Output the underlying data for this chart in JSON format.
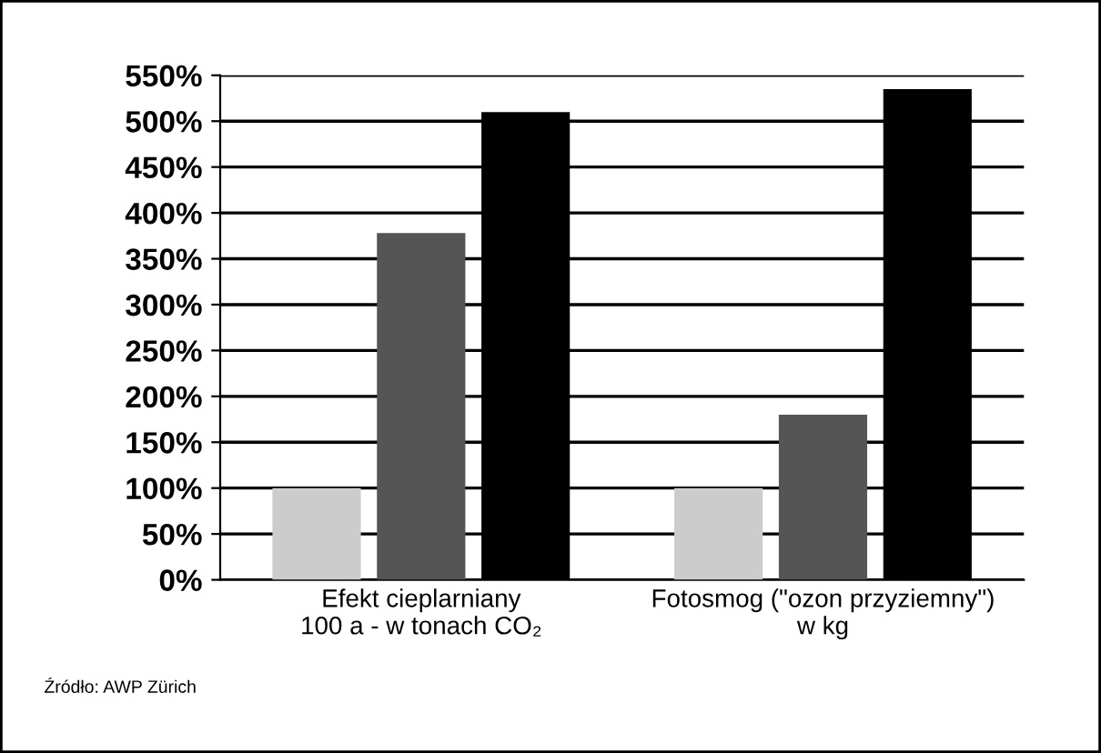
{
  "chart_data": {
    "type": "bar",
    "categories": [
      "Efekt cieplarniany\n100 a - w tonach CO₂",
      "Fotosmog (\"ozon przyziemny\")\nw kg"
    ],
    "series": [
      {
        "color": "#cccccc",
        "values": [
          100,
          100
        ]
      },
      {
        "color": "#555555",
        "values": [
          378,
          180
        ]
      },
      {
        "color": "#000000",
        "values": [
          510,
          535
        ]
      }
    ],
    "ylim": [
      0,
      550
    ],
    "yticks": [
      {
        "value": 0,
        "label": "0%"
      },
      {
        "value": 50,
        "label": "50%"
      },
      {
        "value": 100,
        "label": "100%"
      },
      {
        "value": 150,
        "label": "150%"
      },
      {
        "value": 200,
        "label": "200%"
      },
      {
        "value": 250,
        "label": "250%"
      },
      {
        "value": 300,
        "label": "300%"
      },
      {
        "value": 350,
        "label": "350%"
      },
      {
        "value": 400,
        "label": "400%"
      },
      {
        "value": 450,
        "label": "450%"
      },
      {
        "value": 500,
        "label": "500%"
      },
      {
        "value": 550,
        "label": "550%"
      }
    ],
    "grid": "y",
    "legend": false,
    "annotations": [
      "Źródło: AWP Zürich"
    ]
  }
}
